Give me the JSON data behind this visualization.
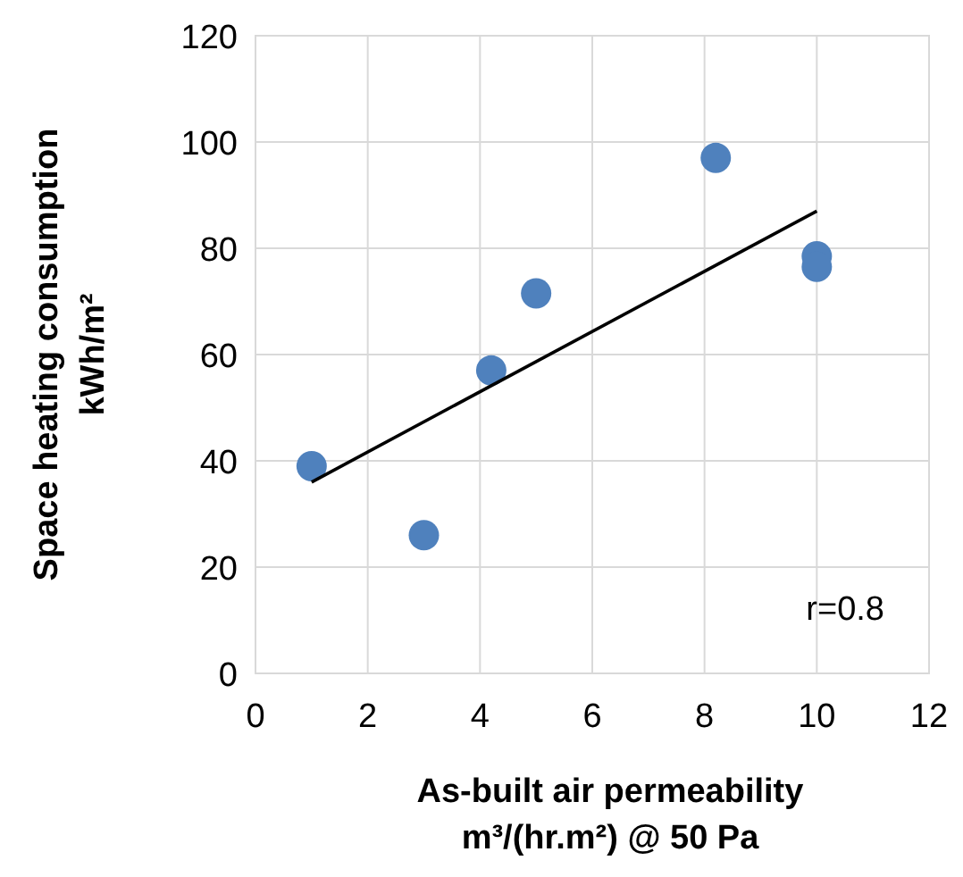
{
  "chart_data": {
    "type": "scatter",
    "xlabel": "As-built air permeability\nm³/(hr.m²) @ 50 Pa",
    "ylabel": "Space heating consumption\nkWh/m²",
    "series": [
      {
        "color": "#4f81bd",
        "x": [
          1,
          3,
          4.2,
          5,
          8.2,
          10,
          10
        ],
        "values": [
          39,
          26,
          57,
          71.5,
          97,
          78.5,
          76.5
        ],
        "marker": "circle"
      },
      {
        "type": "line",
        "color": "#000000",
        "x": [
          1,
          10
        ],
        "values": [
          36,
          87
        ]
      }
    ],
    "xlim": [
      0,
      12
    ],
    "xticks": [
      0,
      2,
      4,
      6,
      8,
      10,
      12
    ],
    "ylim": [
      0,
      120
    ],
    "yticks": [
      0,
      20,
      40,
      60,
      80,
      100,
      120
    ],
    "grid": true,
    "annotations": [
      "r=0.8"
    ]
  }
}
